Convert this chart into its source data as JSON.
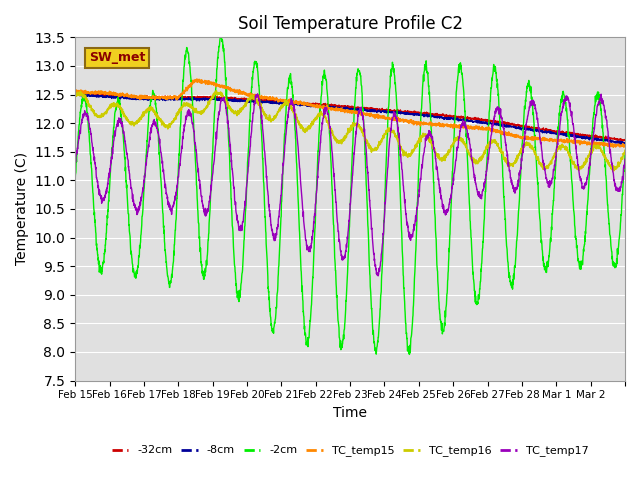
{
  "title": "Soil Temperature Profile C2",
  "xlabel": "Time",
  "ylabel": "Temperature (C)",
  "ylim": [
    7.5,
    13.5
  ],
  "yticks": [
    7.5,
    8.0,
    8.5,
    9.0,
    9.5,
    10.0,
    10.5,
    11.0,
    11.5,
    12.0,
    12.5,
    13.0,
    13.5
  ],
  "xtick_labels": [
    "Feb 15",
    "Feb 16",
    "Feb 17",
    "Feb 18",
    "Feb 19",
    "Feb 20",
    "Feb 21",
    "Feb 22",
    "Feb 23",
    "Feb 24",
    "Feb 25",
    "Feb 26",
    "Feb 27",
    "Feb 28",
    "Mar 1",
    "Mar 2"
  ],
  "legend_box_label": "SW_met",
  "legend_box_facecolor": "#f0d020",
  "legend_box_edgecolor": "#8B6914",
  "line_colors": {
    "-32cm": "#cc0000",
    "-8cm": "#000099",
    "-2cm": "#00ee00",
    "TC_temp15": "#ff8800",
    "TC_temp16": "#cccc00",
    "TC_temp17": "#9900bb"
  },
  "plot_bg_color": "#e0e0e0",
  "fig_bg_color": "#ffffff",
  "grid_color": "#ffffff"
}
